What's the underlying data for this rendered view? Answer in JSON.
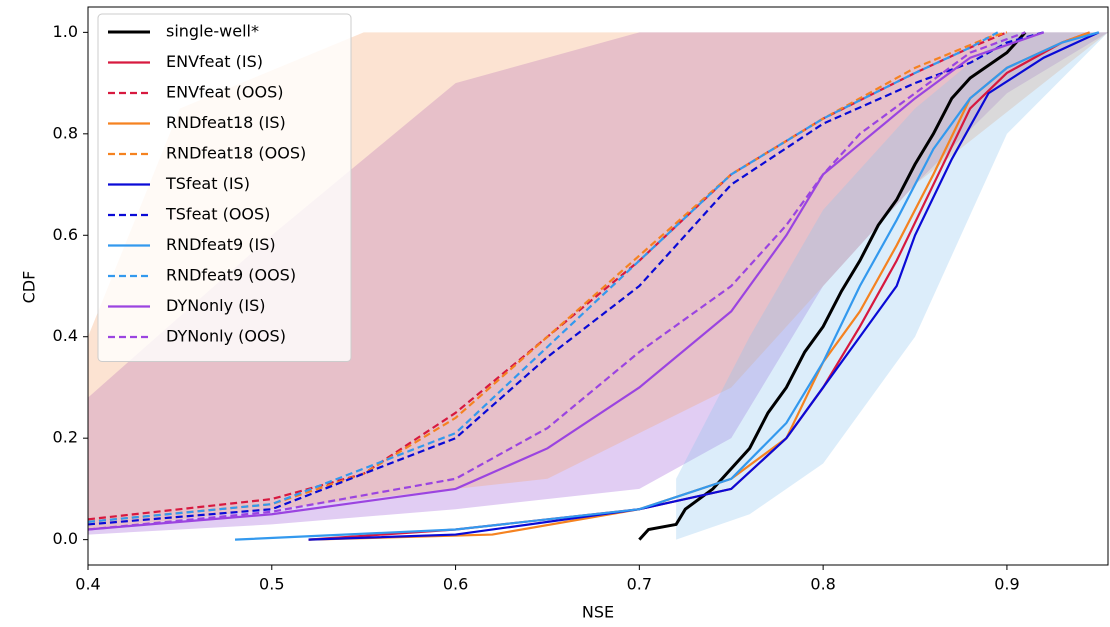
{
  "chart_data": {
    "type": "line",
    "x_label": "NSE",
    "y_label": "CDF",
    "xlim": [
      0.4,
      0.955
    ],
    "ylim": [
      -0.05,
      1.05
    ],
    "xticks": [
      0.4,
      0.5,
      0.6,
      0.7,
      0.8,
      0.9
    ],
    "yticks": [
      {
        "value": 0,
        "label": "0.0"
      },
      0.2,
      0.4,
      0.6,
      0.8,
      {
        "value": 1,
        "label": "1.0"
      }
    ],
    "legend": "upper left",
    "bands": [
      {
        "color": "#9b59d6",
        "x": [
          0.4,
          0.5,
          0.6,
          0.7,
          0.75,
          0.8,
          0.85,
          0.9,
          0.955
        ],
        "upper": [
          0.28,
          0.6,
          0.9,
          1,
          1,
          1,
          1,
          1,
          1
        ],
        "lower": [
          0.01,
          0.03,
          0.06,
          0.1,
          0.2,
          0.5,
          0.7,
          0.88,
          1
        ]
      },
      {
        "color": "#f5a26b",
        "x": [
          0.4,
          0.45,
          0.55,
          0.65,
          0.75,
          0.85,
          0.955
        ],
        "upper": [
          0.4,
          0.85,
          1,
          1,
          1,
          1,
          1
        ],
        "lower": [
          0.02,
          0.04,
          0.08,
          0.12,
          0.3,
          0.7,
          1
        ]
      },
      {
        "color": "#8cc4f0",
        "x": [
          0.72,
          0.76,
          0.8,
          0.85,
          0.9,
          0.955
        ],
        "upper": [
          0.12,
          0.4,
          0.65,
          0.85,
          1,
          1
        ],
        "lower": [
          0,
          0.05,
          0.15,
          0.4,
          0.8,
          1
        ]
      }
    ],
    "series": [
      {
        "name": "single-well*",
        "color": "#000000",
        "dash": false,
        "x": [
          0.7,
          0.705,
          0.72,
          0.725,
          0.74,
          0.76,
          0.77,
          0.78,
          0.79,
          0.8,
          0.81,
          0.82,
          0.83,
          0.84,
          0.85,
          0.86,
          0.87,
          0.88,
          0.9,
          0.91
        ],
        "values": [
          0,
          0.02,
          0.03,
          0.06,
          0.1,
          0.18,
          0.25,
          0.3,
          0.37,
          0.42,
          0.49,
          0.55,
          0.62,
          0.67,
          0.74,
          0.8,
          0.87,
          0.91,
          0.96,
          1.0
        ]
      },
      {
        "name": "ENVfeat (IS)",
        "color": "#d7193f",
        "dash": false,
        "x": [
          0.52,
          0.6,
          0.7,
          0.75,
          0.78,
          0.8,
          0.82,
          0.84,
          0.86,
          0.88,
          0.9,
          0.93,
          0.945
        ],
        "values": [
          0,
          0.02,
          0.06,
          0.1,
          0.2,
          0.3,
          0.42,
          0.55,
          0.7,
          0.85,
          0.92,
          0.98,
          1
        ]
      },
      {
        "name": "ENVfeat (OOS)",
        "color": "#d7193f",
        "dash": true,
        "x": [
          0.4,
          0.5,
          0.55,
          0.6,
          0.65,
          0.7,
          0.75,
          0.8,
          0.85,
          0.88,
          0.9
        ],
        "values": [
          0.04,
          0.08,
          0.13,
          0.25,
          0.4,
          0.55,
          0.72,
          0.83,
          0.92,
          0.97,
          1.0
        ]
      },
      {
        "name": "RNDfeat18 (IS)",
        "color": "#f58220",
        "dash": false,
        "x": [
          0.52,
          0.62,
          0.7,
          0.75,
          0.78,
          0.8,
          0.82,
          0.84,
          0.86,
          0.88,
          0.9,
          0.93,
          0.945
        ],
        "values": [
          0,
          0.01,
          0.06,
          0.12,
          0.2,
          0.35,
          0.45,
          0.58,
          0.72,
          0.87,
          0.93,
          0.98,
          1
        ]
      },
      {
        "name": "RNDfeat18 (OOS)",
        "color": "#f58220",
        "dash": true,
        "x": [
          0.4,
          0.5,
          0.55,
          0.6,
          0.65,
          0.7,
          0.75,
          0.8,
          0.85,
          0.89,
          0.9
        ],
        "values": [
          0.035,
          0.07,
          0.13,
          0.24,
          0.4,
          0.56,
          0.72,
          0.83,
          0.93,
          0.99,
          1
        ]
      },
      {
        "name": "TSfeat (IS)",
        "color": "#0a0ad6",
        "dash": false,
        "x": [
          0.52,
          0.6,
          0.7,
          0.75,
          0.78,
          0.8,
          0.82,
          0.84,
          0.85,
          0.87,
          0.89,
          0.92,
          0.95
        ],
        "values": [
          0,
          0.01,
          0.06,
          0.1,
          0.2,
          0.3,
          0.4,
          0.5,
          0.6,
          0.75,
          0.88,
          0.95,
          1
        ]
      },
      {
        "name": "TSfeat (OOS)",
        "color": "#0a0ad6",
        "dash": true,
        "x": [
          0.4,
          0.5,
          0.55,
          0.6,
          0.65,
          0.7,
          0.75,
          0.8,
          0.85,
          0.88,
          0.9,
          0.92
        ],
        "values": [
          0.03,
          0.06,
          0.13,
          0.2,
          0.36,
          0.5,
          0.7,
          0.82,
          0.9,
          0.94,
          0.98,
          1
        ]
      },
      {
        "name": "RNDfeat9 (IS)",
        "color": "#3399ee",
        "dash": false,
        "x": [
          0.48,
          0.6,
          0.7,
          0.75,
          0.78,
          0.8,
          0.82,
          0.84,
          0.86,
          0.88,
          0.9,
          0.93,
          0.95
        ],
        "values": [
          0,
          0.02,
          0.06,
          0.12,
          0.23,
          0.35,
          0.5,
          0.63,
          0.77,
          0.87,
          0.93,
          0.98,
          1
        ]
      },
      {
        "name": "RNDfeat9 (OOS)",
        "color": "#3399ee",
        "dash": true,
        "x": [
          0.4,
          0.5,
          0.55,
          0.6,
          0.65,
          0.7,
          0.75,
          0.8,
          0.85,
          0.88,
          0.895
        ],
        "values": [
          0.035,
          0.07,
          0.14,
          0.21,
          0.38,
          0.55,
          0.72,
          0.83,
          0.92,
          0.97,
          1
        ]
      },
      {
        "name": "DYNonly (IS)",
        "color": "#9b44e0",
        "dash": false,
        "x": [
          0.4,
          0.5,
          0.6,
          0.65,
          0.7,
          0.75,
          0.78,
          0.8,
          0.82,
          0.85,
          0.88,
          0.92
        ],
        "values": [
          0.02,
          0.05,
          0.1,
          0.18,
          0.3,
          0.45,
          0.6,
          0.72,
          0.78,
          0.87,
          0.95,
          1
        ]
      },
      {
        "name": "DYNonly (OOS)",
        "color": "#9b44e0",
        "dash": true,
        "x": [
          0.4,
          0.5,
          0.6,
          0.65,
          0.7,
          0.75,
          0.78,
          0.8,
          0.82,
          0.85,
          0.88,
          0.91
        ],
        "values": [
          0.02,
          0.055,
          0.12,
          0.22,
          0.37,
          0.5,
          0.62,
          0.72,
          0.8,
          0.88,
          0.96,
          1
        ]
      }
    ]
  }
}
